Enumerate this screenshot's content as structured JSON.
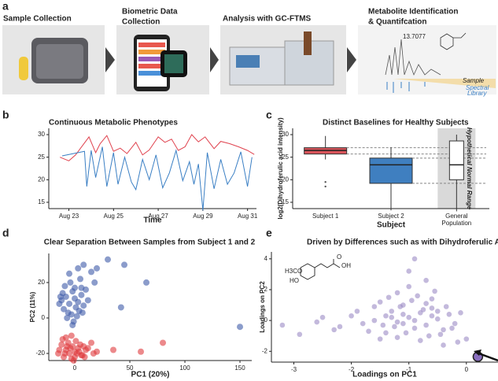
{
  "panel_labels": [
    "a",
    "b",
    "c",
    "d",
    "e"
  ],
  "workflow": {
    "steps": [
      {
        "lines": [
          "Sample Collection"
        ]
      },
      {
        "lines": [
          "Biometric Data",
          "Collection"
        ]
      },
      {
        "lines": [
          "Analysis with GC-FTMS"
        ]
      },
      {
        "lines": [
          "Metabolite Identification",
          "& Quantifcation"
        ]
      }
    ],
    "peak_label": "13.7077",
    "spectrum_labels": [
      "Sample",
      "Spectral",
      "Library"
    ]
  },
  "structure_labels": [
    "H3CO",
    "HO",
    "O",
    "OH"
  ],
  "chart_data": [
    {
      "type": "line",
      "title": "Continuous Metabolic Phenotypes",
      "xlabel": "Time",
      "xlim": [
        22.1,
        31.4
      ],
      "xticks": [
        {
          "value": 23,
          "label": "Aug 23"
        },
        {
          "value": 25,
          "label": "Aug 25"
        },
        {
          "value": 27,
          "label": "Aug 27"
        },
        {
          "value": 29,
          "label": "Aug 29"
        },
        {
          "value": 31,
          "label": "Aug 31"
        }
      ],
      "ylim": [
        13.6,
        31.4
      ],
      "yticks": [
        15,
        20,
        25,
        30
      ],
      "series": [
        {
          "color": "#e0434f",
          "x": [
            22.6,
            23.0,
            23.3,
            23.6,
            23.9,
            24.2,
            24.4,
            24.7,
            25.0,
            25.3,
            25.6,
            26.0,
            26.3,
            26.6,
            27.0,
            27.3,
            27.6,
            27.9,
            28.2,
            28.5,
            28.8,
            29.1,
            29.5,
            29.8,
            30.2,
            30.6,
            31.0,
            31.3
          ],
          "values": [
            25,
            24.2,
            25.5,
            27.5,
            29.5,
            26,
            28,
            29.8,
            26.3,
            27,
            25.8,
            28.3,
            25.5,
            26.6,
            29.5,
            28.3,
            29.0,
            26.5,
            27.3,
            30.0,
            28.4,
            29.5,
            26.9,
            28.5,
            28.0,
            27.3,
            26.5,
            25.6
          ]
        },
        {
          "color": "#3a7fc4",
          "x": [
            22.7,
            23.7,
            23.8,
            24.0,
            24.2,
            24.5,
            24.7,
            25.0,
            25.2,
            25.5,
            25.8,
            26.0,
            26.3,
            26.6,
            26.9,
            27.2,
            27.5,
            27.8,
            28.1,
            28.4,
            28.6,
            28.8,
            29.0,
            29.2,
            29.5,
            29.8,
            30.1,
            30.4,
            30.7,
            31.0,
            31.2
          ],
          "values": [
            25.3,
            26.3,
            18.5,
            26.5,
            20.5,
            27.3,
            18.5,
            26.0,
            19.0,
            25.0,
            19.5,
            17.8,
            24.5,
            20.0,
            25.5,
            18.2,
            21.5,
            26.5,
            19.8,
            24.0,
            19.0,
            23.5,
            13.2,
            26.0,
            18.0,
            24.5,
            19.0,
            21.5,
            26.2,
            18.5,
            25.0
          ]
        }
      ]
    },
    {
      "type": "box",
      "title": "Distinct Baselines for Healthy Subjects",
      "xlabel": "Subject",
      "ylabel": "log2(Dihydroferulic acid intensity)",
      "annotation": "Hypothetical Normal Range",
      "categories": [
        "Subject 1",
        "Subject 2",
        "General Population"
      ],
      "ylim": [
        13.6,
        31.4
      ],
      "yticks": [
        15,
        20,
        25,
        30
      ],
      "boxes": [
        {
          "color": "#d9545a",
          "whislo": 24.5,
          "q1": 25.7,
          "med": 26.5,
          "q3": 27.1,
          "whishi": 29.7,
          "fliers": [
            18.5,
            19.5
          ]
        },
        {
          "color": "#3f7fc0",
          "whislo": 13.2,
          "q1": 19.2,
          "med": 23.3,
          "q3": 24.8,
          "whishi": 27.2
        },
        {
          "color": "#ffffff",
          "whislo": 13,
          "q1": 20,
          "med": 23.3,
          "q3": 28.6,
          "whishi": 30
        }
      ]
    },
    {
      "type": "scatter",
      "title": "Clear Separation Between Samples from Subject 1 and 2",
      "xlabel": "PC1 (20%)",
      "ylabel": "PC2 (11%)",
      "xlim": [
        -23.6,
        160.7
      ],
      "xticks": [
        0,
        50,
        100,
        150
      ],
      "ylim": [
        -24,
        36.4
      ],
      "yticks": [
        -20,
        0,
        20
      ],
      "series": [
        {
          "color": "#3e5aa8",
          "x": [
            -12,
            -8,
            -5,
            -2,
            0,
            3,
            6,
            -10,
            -14,
            -6,
            -3,
            1,
            4,
            8,
            -9,
            -4,
            0,
            5,
            10,
            -11,
            -7,
            -1,
            2,
            7,
            12,
            -5,
            3,
            15,
            18,
            20,
            30,
            45,
            65,
            42,
            150,
            8,
            -13,
            -2,
            6
          ],
          "values": [
            10,
            12,
            8,
            15,
            11,
            9,
            13,
            5,
            8,
            3,
            2,
            6,
            4,
            7,
            18,
            20,
            17,
            22,
            16,
            14,
            0,
            -2,
            1,
            3,
            10,
            25,
            28,
            26,
            20,
            28,
            33,
            30,
            20,
            6,
            -5,
            30,
            12,
            -4,
            17
          ]
        },
        {
          "color": "#e03a3e",
          "x": [
            -12,
            -8,
            -5,
            -2,
            0,
            3,
            6,
            -10,
            -14,
            -6,
            -3,
            1,
            4,
            8,
            -9,
            -4,
            0,
            5,
            10,
            -11,
            -7,
            -1,
            2,
            7,
            12,
            15,
            20,
            -15,
            35,
            60,
            80,
            -3,
            9,
            -8,
            17
          ],
          "values": [
            -15,
            -18,
            -20,
            -16,
            -19,
            -17,
            -21,
            -22,
            -18,
            -14,
            -23,
            -13,
            -19,
            -16,
            -20,
            -17,
            -22,
            -15,
            -18,
            -12,
            -16,
            -24,
            -20,
            -21,
            -17,
            -14,
            -19,
            -20,
            -18,
            -19,
            -14,
            -10,
            -22,
            -11,
            -20
          ]
        }
      ]
    },
    {
      "type": "scatter",
      "title": "Driven by Differences such as with Dihydroferulic Aci",
      "xlabel": "Loadings on PC1",
      "ylabel": "Loadings on PC2",
      "xlim": [
        -3.39,
        0.55
      ],
      "xticks": [
        -3,
        -2,
        -1,
        0
      ],
      "ylim": [
        -2.7,
        4.45
      ],
      "yticks": [
        -2,
        0,
        2,
        4
      ],
      "series": [
        {
          "color": "#9b8ac4",
          "x": [
            -1.0,
            -0.8,
            -1.2,
            -0.6,
            -1.4,
            -0.9,
            -0.5,
            -1.1,
            -0.7,
            -1.3,
            -0.4,
            -1.6,
            -0.3,
            -0.95,
            -1.05,
            -0.85,
            -1.15,
            -0.65,
            -1.25,
            -0.75,
            -1.8,
            -2.0,
            -2.3,
            -2.6,
            -2.9,
            -0.2,
            -0.1,
            0.0,
            -1.5,
            -1.7,
            -0.55,
            -0.45,
            -1.35,
            -1.45,
            -0.35,
            -1.9,
            -2.2,
            -0.15,
            -1.0,
            -0.8,
            -1.2,
            -0.6,
            -0.9,
            -1.1,
            -0.7,
            -1.3,
            -0.5,
            -1.4,
            -1.6,
            -0.25,
            -2.5,
            -3.2,
            -1.0,
            -0.7,
            -1.2,
            -0.4,
            -0.9,
            -1.5,
            -0.6,
            -1.1
          ],
          "values": [
            0.2,
            0.5,
            -0.1,
            0.8,
            0.3,
            -0.5,
            0.1,
            1.0,
            -0.3,
            0.6,
            -0.6,
            0.0,
            0.4,
            1.3,
            -0.8,
            1.6,
            0.9,
            -1.0,
            -0.4,
            0.7,
            -0.2,
            0.3,
            -0.6,
            -0.1,
            -0.9,
            -0.2,
            0.5,
            -1.2,
            1.2,
            -0.7,
            1.9,
            -0.9,
            1.5,
            -0.3,
            0.9,
            0.6,
            -0.4,
            -1.4,
            2.2,
            -1.3,
            -1.1,
            1.4,
            0.0,
            -0.2,
            1.1,
            0.2,
            0.6,
            -0.8,
            0.9,
            -0.5,
            0.2,
            -0.3,
            3.2,
            2.6,
            1.8,
            -1.6,
            4.0,
            -1.2,
            0.3,
            0.4
          ]
        },
        {
          "color": "#8a6fc0",
          "edgecolor": "#222222",
          "x": [
            0.2
          ],
          "values": [
            -2.35
          ]
        }
      ]
    }
  ]
}
